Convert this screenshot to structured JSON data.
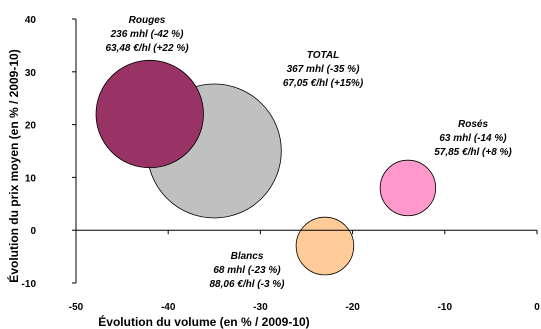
{
  "chart_data": {
    "type": "bubble",
    "xlabel": "Évolution du volume (en % / 2009-10)",
    "ylabel": "Évolution du prix moyen (en % / 2009-10)",
    "xlim": [
      -50,
      0
    ],
    "ylim": [
      -10,
      40
    ],
    "x_ticks": [
      -50,
      -40,
      -30,
      -20,
      -10,
      0
    ],
    "y_ticks": [
      -10,
      0,
      10,
      20,
      30,
      40
    ],
    "x_tick_labels": [
      "-50",
      "-40",
      "-30",
      "-20",
      "-10",
      "0"
    ],
    "y_tick_labels": [
      "-10",
      "0",
      "10",
      "20",
      "30",
      "40"
    ],
    "grid": false,
    "series": [
      {
        "name": "TOTAL",
        "x": -35,
        "y": 15,
        "size": 367,
        "color": "#c0c0c0",
        "lines": [
          "TOTAL",
          "367 mhl (-35 %)",
          "67,05 €/hl (+15%)"
        ]
      },
      {
        "name": "Rouges",
        "x": -42,
        "y": 22,
        "size": 236,
        "color": "#993366",
        "lines": [
          "Rouges",
          "236 mhl (-42 %)",
          "63,48 €/hl (+22 %)"
        ]
      },
      {
        "name": "Blancs",
        "x": -23,
        "y": -3,
        "size": 68,
        "color": "#ffcc99",
        "lines": [
          "Blancs",
          "68 mhl (-23 %)",
          "88,06 €/hl (-3 %)"
        ]
      },
      {
        "name": "Rosés",
        "x": -14,
        "y": 8,
        "size": 63,
        "color": "#ff99cc",
        "lines": [
          "Rosés",
          "63 mhl (-14 %)",
          "57,85 €/hl (+8 %)"
        ]
      }
    ]
  }
}
